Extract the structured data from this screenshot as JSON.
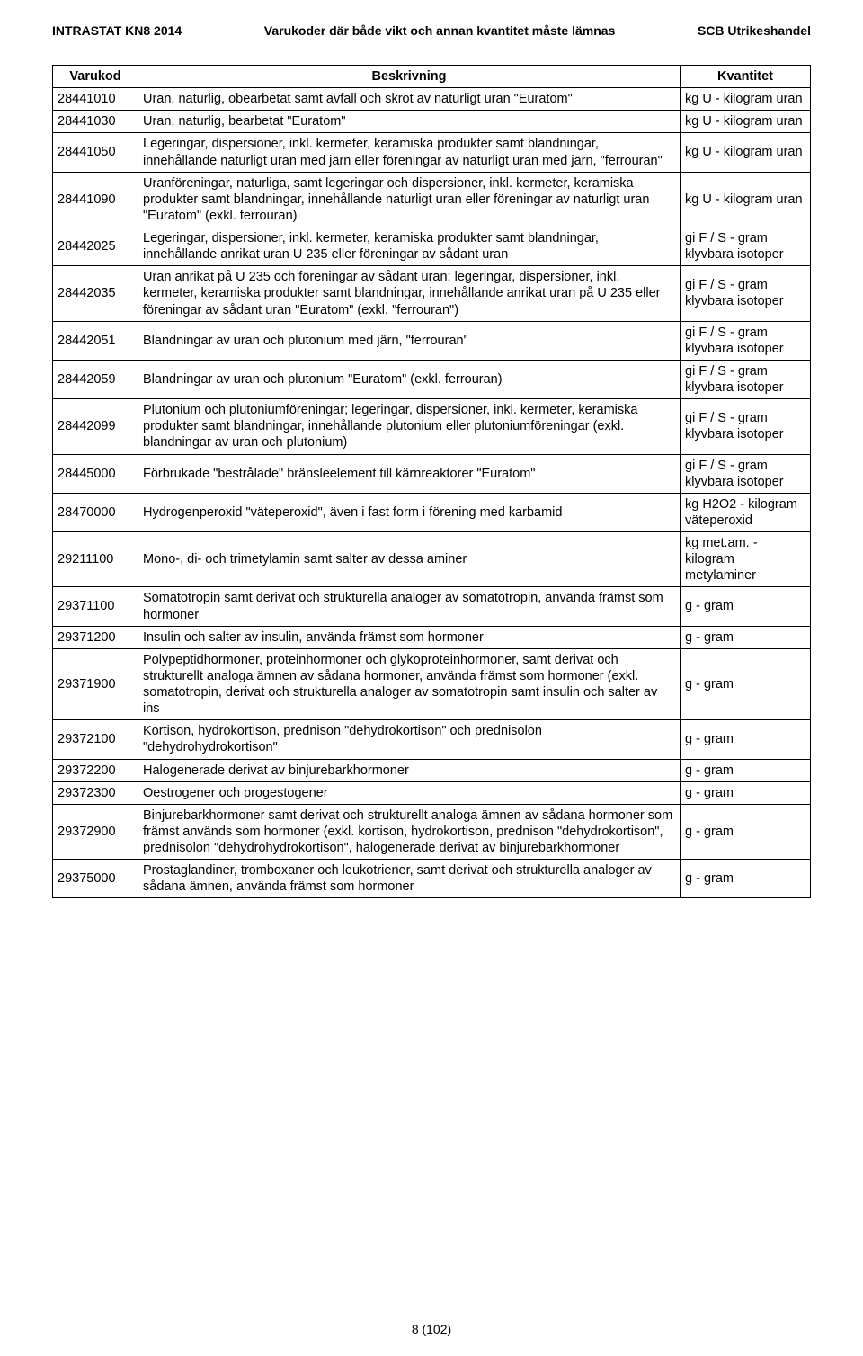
{
  "header": {
    "left": "INTRASTAT KN8 2014",
    "center": "Varukoder där både vikt och annan kvantitet måste lämnas",
    "right": "SCB Utrikeshandel"
  },
  "columns": {
    "c1": "Varukod",
    "c2": "Beskrivning",
    "c3": "Kvantitet"
  },
  "rows": [
    {
      "code": "28441010",
      "desc": "Uran, naturlig, obearbetat samt avfall och skrot av naturligt uran \"Euratom\"",
      "qty": "kg U - kilogram uran"
    },
    {
      "code": "28441030",
      "desc": "Uran, naturlig, bearbetat \"Euratom\"",
      "qty": "kg U - kilogram uran"
    },
    {
      "code": "28441050",
      "desc": "Legeringar, dispersioner, inkl. kermeter, keramiska produkter samt blandningar, innehållande naturligt uran med järn eller föreningar av naturligt uran med järn, \"ferrouran\"",
      "qty": "kg U - kilogram uran"
    },
    {
      "code": "28441090",
      "desc": "Uranföreningar, naturliga, samt legeringar och dispersioner, inkl. kermeter, keramiska produkter samt blandningar, innehållande naturligt uran eller föreningar av naturligt uran \"Euratom\" (exkl. ferrouran)",
      "qty": "kg U - kilogram uran"
    },
    {
      "code": "28442025",
      "desc": "Legeringar, dispersioner, inkl. kermeter, keramiska produkter samt blandningar, innehållande anrikat uran U 235 eller föreningar av sådant uran",
      "qty": "gi F / S - gram klyvbara isotoper"
    },
    {
      "code": "28442035",
      "desc": "Uran anrikat på U 235 och föreningar av sådant uran; legeringar, dispersioner, inkl. kermeter, keramiska produkter samt blandningar, innehållande anrikat uran på U 235 eller föreningar av sådant uran \"Euratom\" (exkl. \"ferrouran\")",
      "qty": "gi F / S - gram klyvbara isotoper"
    },
    {
      "code": "28442051",
      "desc": "Blandningar av uran och plutonium med järn, \"ferrouran\"",
      "qty": "gi F / S - gram klyvbara isotoper"
    },
    {
      "code": "28442059",
      "desc": "Blandningar av uran och plutonium \"Euratom\" (exkl. ferrouran)",
      "qty": "gi F / S - gram klyvbara isotoper"
    },
    {
      "code": "28442099",
      "desc": "Plutonium och plutoniumföreningar; legeringar, dispersioner, inkl. kermeter, keramiska produkter samt blandningar, innehållande plutonium eller plutoniumföreningar (exkl. blandningar av uran och plutonium)",
      "qty": "gi F / S - gram klyvbara isotoper"
    },
    {
      "code": "28445000",
      "desc": "Förbrukade \"bestrålade\" bränsleelement till kärnreaktorer \"Euratom\"",
      "qty": "gi F / S - gram klyvbara isotoper"
    },
    {
      "code": "28470000",
      "desc": "Hydrogenperoxid \"väteperoxid\", även i fast form i förening med karbamid",
      "qty": "kg H2O2 - kilogram väteperoxid"
    },
    {
      "code": "29211100",
      "desc": "Mono-, di- och trimetylamin samt salter av dessa aminer",
      "qty": "kg met.am. - kilogram metylaminer"
    },
    {
      "code": "29371100",
      "desc": "Somatotropin samt derivat och strukturella analoger av somatotropin, använda främst som hormoner",
      "qty": "g - gram"
    },
    {
      "code": "29371200",
      "desc": "Insulin och salter av insulin, använda främst som hormoner",
      "qty": "g - gram"
    },
    {
      "code": "29371900",
      "desc": "Polypeptidhormoner, proteinhormoner och glykoproteinhormoner, samt derivat och strukturellt analoga ämnen av sådana hormoner, använda främst som hormoner (exkl. somatotropin, derivat och strukturella analoger av somatotropin samt insulin och salter av ins",
      "qty": "g - gram"
    },
    {
      "code": "29372100",
      "desc": "Kortison, hydrokortison, prednison \"dehydrokortison\" och prednisolon \"dehydrohydrokortison\"",
      "qty": "g - gram"
    },
    {
      "code": "29372200",
      "desc": "Halogenerade derivat av binjurebarkhormoner",
      "qty": "g - gram"
    },
    {
      "code": "29372300",
      "desc": "Oestrogener och progestogener",
      "qty": "g - gram"
    },
    {
      "code": "29372900",
      "desc": "Binjurebarkhormoner samt derivat och strukturellt analoga ämnen av sådana hormoner som främst används som hormoner (exkl. kortison, hydrokortison, prednison \"dehydrokortison\", prednisolon \"dehydrohydrokortison\", halogenerade derivat av binjurebarkhormoner",
      "qty": "g - gram"
    },
    {
      "code": "29375000",
      "desc": "Prostaglandiner, tromboxaner och leukotriener, samt derivat och strukturella analoger av sådana ämnen, använda främst som hormoner",
      "qty": "g - gram"
    }
  ],
  "footer": "8 (102)"
}
